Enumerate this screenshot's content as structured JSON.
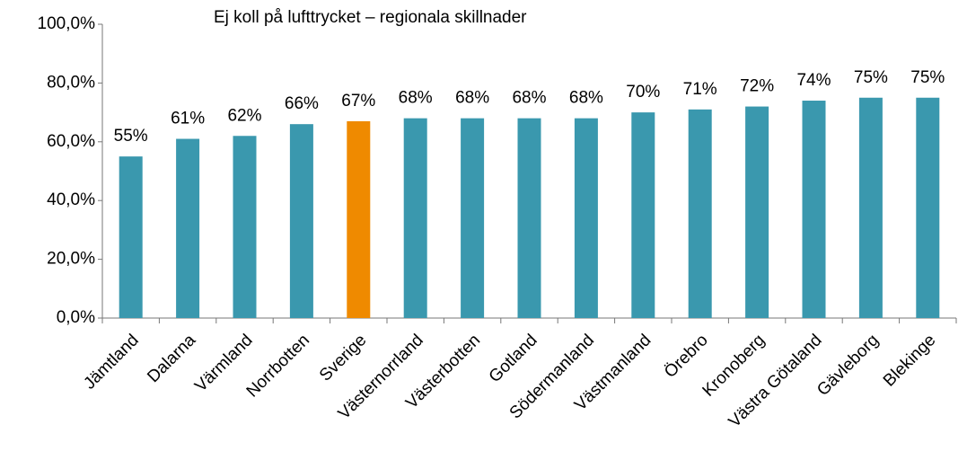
{
  "chart_data": {
    "type": "bar",
    "title": "Ej koll på lufttrycket – regionala skillnader",
    "categories": [
      "Jämtland",
      "Dalarna",
      "Värmland",
      "Norrbotten",
      "Sverige",
      "Västernorrland",
      "Västerbotten",
      "Gotland",
      "Södermanland",
      "Västmanland",
      "Örebro",
      "Kronoberg",
      "Västra Götaland",
      "Gävleborg",
      "Blekinge"
    ],
    "values": [
      55,
      61,
      62,
      66,
      67,
      68,
      68,
      68,
      68,
      70,
      71,
      72,
      74,
      75,
      75
    ],
    "value_labels": [
      "55%",
      "61%",
      "62%",
      "66%",
      "67%",
      "68%",
      "68%",
      "68%",
      "68%",
      "70%",
      "71%",
      "72%",
      "74%",
      "75%",
      "75%"
    ],
    "colors": [
      "#3a98ae",
      "#3a98ae",
      "#3a98ae",
      "#3a98ae",
      "#ef8a00",
      "#3a98ae",
      "#3a98ae",
      "#3a98ae",
      "#3a98ae",
      "#3a98ae",
      "#3a98ae",
      "#3a98ae",
      "#3a98ae",
      "#3a98ae",
      "#3a98ae"
    ],
    "ylim": [
      0,
      100
    ],
    "yticks": [
      {
        "value": 0,
        "label": "0,0%"
      },
      {
        "value": 20,
        "label": "20,0%"
      },
      {
        "value": 40,
        "label": "40,0%"
      },
      {
        "value": 60,
        "label": "60,0%"
      },
      {
        "value": 80,
        "label": "80,0%"
      },
      {
        "value": 100,
        "label": "100,0%"
      }
    ],
    "grid": false
  }
}
